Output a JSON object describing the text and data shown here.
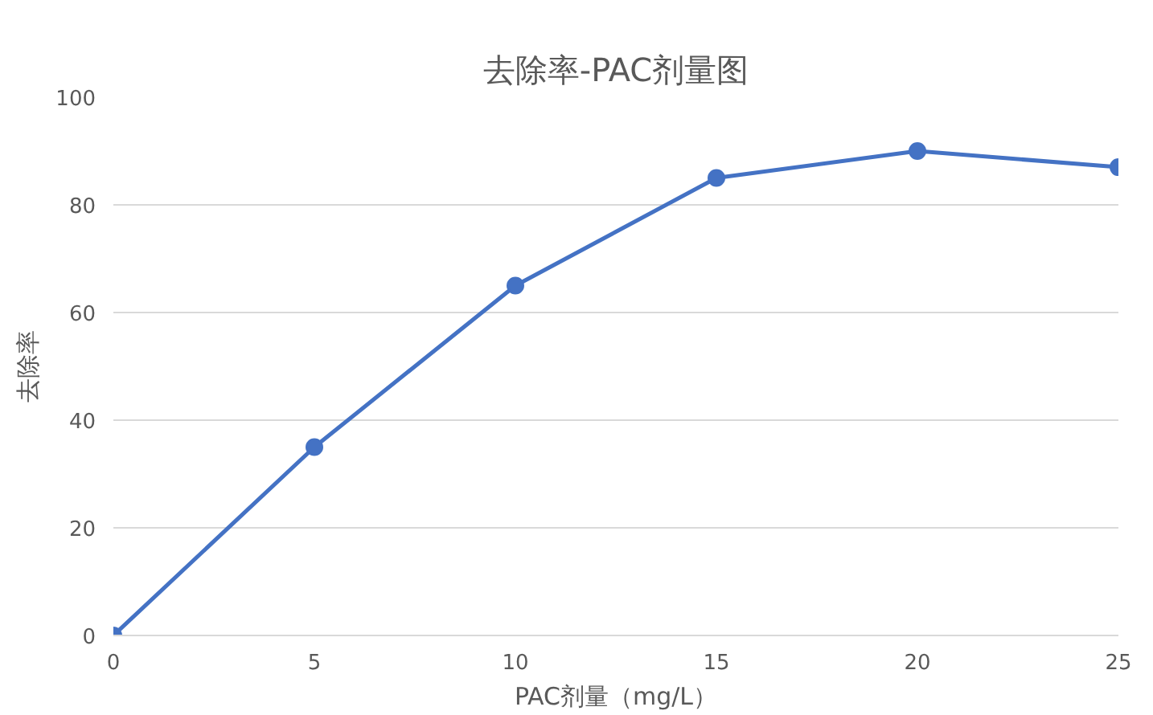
{
  "chart_data": {
    "type": "line",
    "title": "去除率-PAC剂量图",
    "xlabel": "PAC剂量（mg/L）",
    "ylabel": "去除率",
    "x": [
      0,
      5,
      10,
      15,
      20,
      25
    ],
    "series": [
      {
        "color": "#4472c4",
        "values": [
          0,
          35,
          65,
          85,
          90,
          87
        ]
      }
    ],
    "xlim": [
      0,
      25
    ],
    "xticks": [
      0,
      5,
      10,
      15,
      20,
      25
    ],
    "ylim": [
      0,
      100
    ],
    "yticks": [
      0,
      20,
      40,
      60,
      80,
      100
    ],
    "grid": "y",
    "marker": "circle",
    "line_style": "solid"
  }
}
